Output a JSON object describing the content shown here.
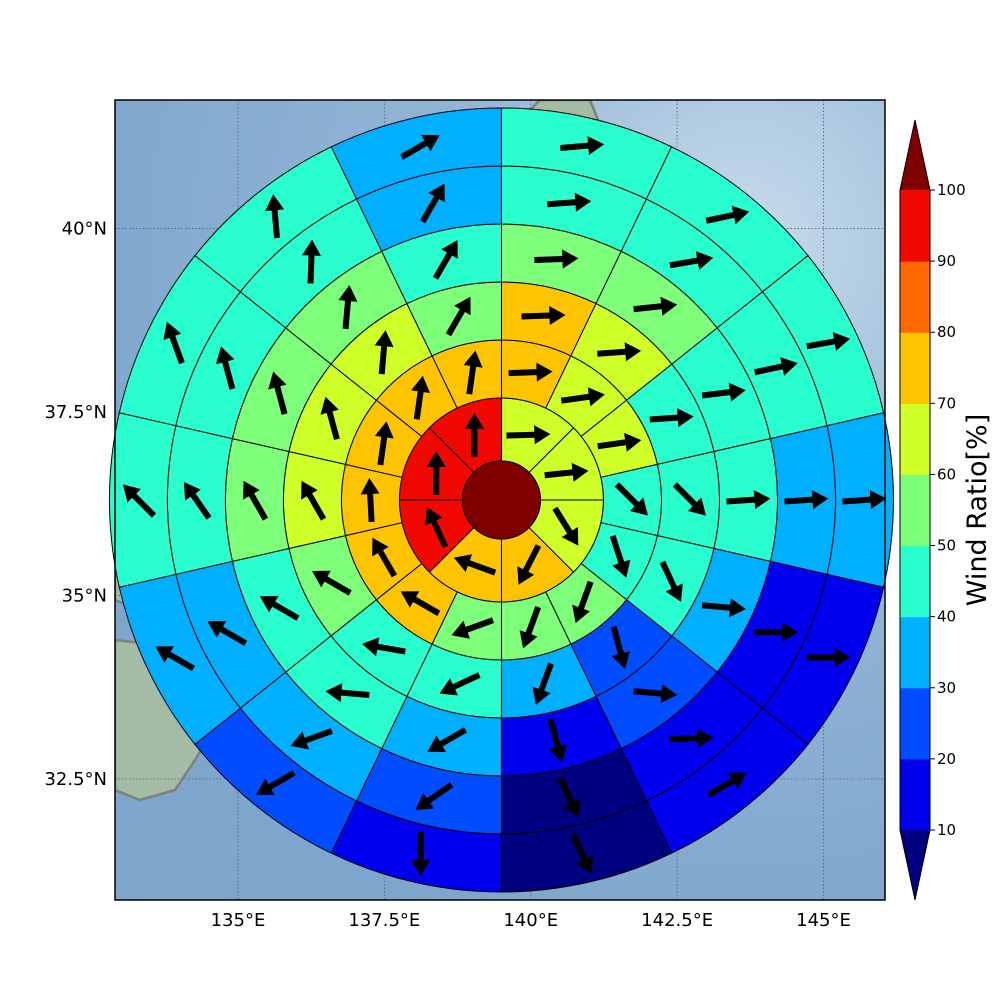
{
  "chart_data": {
    "type": "heatmap",
    "subtype": "polar wind-ratio rose on map",
    "title": "",
    "x_axis": {
      "range": [
        132.9,
        146.05
      ],
      "ticks": [
        135,
        137.5,
        140,
        142.5,
        145
      ],
      "tick_labels": [
        "135°E",
        "137.5°E",
        "140°E",
        "142.5°E",
        "145°E"
      ]
    },
    "y_axis": {
      "range": [
        30.85,
        41.75
      ],
      "ticks": [
        32.5,
        35,
        37.5,
        40
      ],
      "tick_labels": [
        "32.5°N",
        "35°N",
        "37.5°N",
        "40°N"
      ]
    },
    "grid": true,
    "center": {
      "lon": 139.5,
      "lat": 36.3
    },
    "center_value": 100,
    "rings": [
      {
        "ring": 1,
        "sectors": [
          {
            "direction": "NNE",
            "value": 65,
            "arrow_deg": 88
          },
          {
            "direction": "ENE",
            "value": 65,
            "arrow_deg": 84
          },
          {
            "direction": "ESE",
            "value": 65,
            "arrow_deg": 148
          },
          {
            "direction": "SSE",
            "value": 75,
            "arrow_deg": 207
          },
          {
            "direction": "SSW",
            "value": 75,
            "arrow_deg": 290
          },
          {
            "direction": "WSW",
            "value": 95,
            "arrow_deg": 335
          },
          {
            "direction": "WNW",
            "value": 95,
            "arrow_deg": 0
          },
          {
            "direction": "NNW",
            "value": 95,
            "arrow_deg": 0
          }
        ]
      },
      {
        "ring": 2,
        "sectors": [
          {
            "direction": "NNE",
            "value": 75,
            "arrow_deg": 88
          },
          {
            "direction": "NE",
            "value": 65,
            "arrow_deg": 82
          },
          {
            "direction": "ENE",
            "value": 65,
            "arrow_deg": 82
          },
          {
            "direction": "E",
            "value": 45,
            "arrow_deg": 135
          },
          {
            "direction": "ESE",
            "value": 45,
            "arrow_deg": 162
          },
          {
            "direction": "SE",
            "value": 55,
            "arrow_deg": 200
          },
          {
            "direction": "SSE",
            "value": 55,
            "arrow_deg": 200
          },
          {
            "direction": "SSW",
            "value": 55,
            "arrow_deg": 250
          },
          {
            "direction": "SW",
            "value": 75,
            "arrow_deg": 300
          },
          {
            "direction": "WSW",
            "value": 75,
            "arrow_deg": 330
          },
          {
            "direction": "W",
            "value": 75,
            "arrow_deg": 357
          },
          {
            "direction": "WNW",
            "value": 75,
            "arrow_deg": 8
          },
          {
            "direction": "NW",
            "value": 75,
            "arrow_deg": 8
          },
          {
            "direction": "NNW",
            "value": 75,
            "arrow_deg": 8
          }
        ]
      },
      {
        "ring": 3,
        "sectors": [
          {
            "direction": "NNE",
            "value": 75,
            "arrow_deg": 88
          },
          {
            "direction": "NE",
            "value": 65,
            "arrow_deg": 86
          },
          {
            "direction": "ENE",
            "value": 45,
            "arrow_deg": 86
          },
          {
            "direction": "E",
            "value": 45,
            "arrow_deg": 135
          },
          {
            "direction": "ESE",
            "value": 45,
            "arrow_deg": 155
          },
          {
            "direction": "SE",
            "value": 25,
            "arrow_deg": 165
          },
          {
            "direction": "SSE",
            "value": 35,
            "arrow_deg": 200
          },
          {
            "direction": "SSW",
            "value": 45,
            "arrow_deg": 245
          },
          {
            "direction": "SW",
            "value": 45,
            "arrow_deg": 280
          },
          {
            "direction": "WSW",
            "value": 55,
            "arrow_deg": 300
          },
          {
            "direction": "W",
            "value": 65,
            "arrow_deg": 330
          },
          {
            "direction": "WNW",
            "value": 65,
            "arrow_deg": 345
          },
          {
            "direction": "NW",
            "value": 65,
            "arrow_deg": 5
          },
          {
            "direction": "NNW",
            "value": 55,
            "arrow_deg": 30
          }
        ]
      },
      {
        "ring": 4,
        "sectors": [
          {
            "direction": "NNE",
            "value": 55,
            "arrow_deg": 88
          },
          {
            "direction": "NE",
            "value": 55,
            "arrow_deg": 84
          },
          {
            "direction": "ENE",
            "value": 45,
            "arrow_deg": 83
          },
          {
            "direction": "E",
            "value": 45,
            "arrow_deg": 86
          },
          {
            "direction": "ESE",
            "value": 35,
            "arrow_deg": 95
          },
          {
            "direction": "SE",
            "value": 25,
            "arrow_deg": 95
          },
          {
            "direction": "SSE",
            "value": 15,
            "arrow_deg": 165
          },
          {
            "direction": "SSW",
            "value": 35,
            "arrow_deg": 240
          },
          {
            "direction": "SW",
            "value": 45,
            "arrow_deg": 275
          },
          {
            "direction": "WSW",
            "value": 45,
            "arrow_deg": 300
          },
          {
            "direction": "W",
            "value": 55,
            "arrow_deg": 330
          },
          {
            "direction": "WNW",
            "value": 55,
            "arrow_deg": 345
          },
          {
            "direction": "NW",
            "value": 55,
            "arrow_deg": 5
          },
          {
            "direction": "NNW",
            "value": 45,
            "arrow_deg": 30
          }
        ]
      },
      {
        "ring": 5,
        "sectors": [
          {
            "direction": "NNE",
            "value": 45,
            "arrow_deg": 86
          },
          {
            "direction": "NE",
            "value": 45,
            "arrow_deg": 80
          },
          {
            "direction": "ENE",
            "value": 45,
            "arrow_deg": 78
          },
          {
            "direction": "E",
            "value": 35,
            "arrow_deg": 86
          },
          {
            "direction": "ESE",
            "value": 15,
            "arrow_deg": 90
          },
          {
            "direction": "SE",
            "value": 15,
            "arrow_deg": 88
          },
          {
            "direction": "SSE",
            "value": 5,
            "arrow_deg": 155
          },
          {
            "direction": "SSW",
            "value": 25,
            "arrow_deg": 235
          },
          {
            "direction": "SW",
            "value": 35,
            "arrow_deg": 250
          },
          {
            "direction": "WSW",
            "value": 35,
            "arrow_deg": 300
          },
          {
            "direction": "W",
            "value": 45,
            "arrow_deg": 325
          },
          {
            "direction": "WNW",
            "value": 45,
            "arrow_deg": 345
          },
          {
            "direction": "NW",
            "value": 45,
            "arrow_deg": 2
          },
          {
            "direction": "NNW",
            "value": 35,
            "arrow_deg": 30
          }
        ]
      },
      {
        "ring": 6,
        "sectors": [
          {
            "direction": "NNE",
            "value": 45,
            "arrow_deg": 85
          },
          {
            "direction": "NE",
            "value": 45,
            "arrow_deg": 78
          },
          {
            "direction": "ENE",
            "value": 45,
            "arrow_deg": 80
          },
          {
            "direction": "E",
            "value": 35,
            "arrow_deg": 86
          },
          {
            "direction": "ESE",
            "value": 15,
            "arrow_deg": 90
          },
          {
            "direction": "SE",
            "value": 15,
            "arrow_deg": 60
          },
          {
            "direction": "SSE",
            "value": 5,
            "arrow_deg": 155
          },
          {
            "direction": "SSW",
            "value": 15,
            "arrow_deg": 180
          },
          {
            "direction": "SW",
            "value": 25,
            "arrow_deg": 240
          },
          {
            "direction": "WSW",
            "value": 35,
            "arrow_deg": 300
          },
          {
            "direction": "W",
            "value": 45,
            "arrow_deg": 315
          },
          {
            "direction": "WNW",
            "value": 45,
            "arrow_deg": 340
          },
          {
            "direction": "NW",
            "value": 45,
            "arrow_deg": 355
          },
          {
            "direction": "NNW",
            "value": 35,
            "arrow_deg": 60
          }
        ]
      }
    ],
    "colorbar": {
      "label": "Wind Ratio[%]",
      "bounds": [
        10,
        20,
        30,
        40,
        50,
        60,
        70,
        80,
        90,
        100
      ],
      "tick_labels": [
        "10",
        "20",
        "30",
        "40",
        "50",
        "60",
        "70",
        "80",
        "90",
        "100"
      ],
      "colors": [
        "#0000ee",
        "#004cff",
        "#00b0ff",
        "#29ffce",
        "#7dff7a",
        "#ceff29",
        "#ffc400",
        "#ff6800",
        "#f10800"
      ],
      "under_color": "#000080",
      "over_color": "#800000",
      "extend": "both"
    }
  },
  "style": {
    "sea_color": "#86acd0",
    "land_color": "#9fb8a0",
    "coast_color": "#808080",
    "grid_color": "#4a5f74",
    "arrow_color": "#000000",
    "edge_color": "#000000"
  }
}
